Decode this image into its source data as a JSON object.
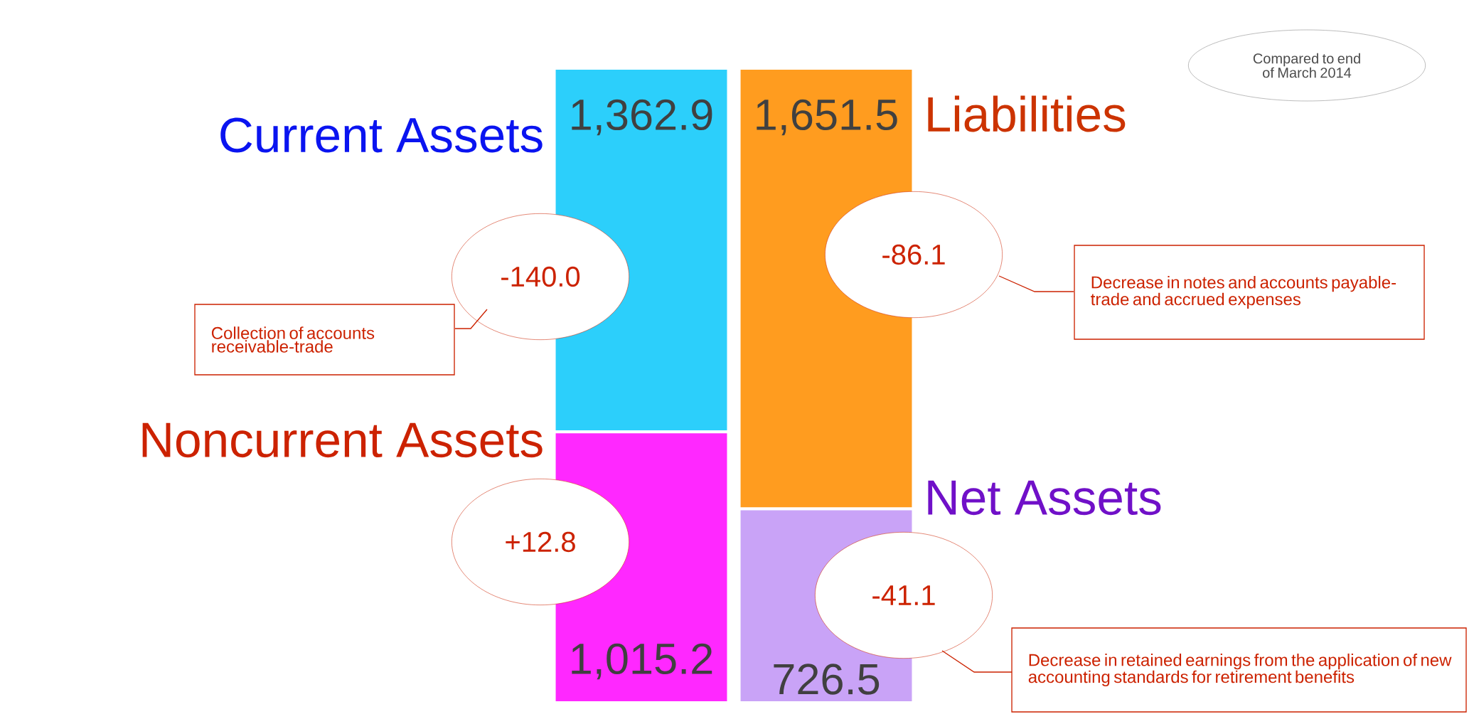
{
  "chart_data": {
    "type": "bar",
    "stacked": true,
    "categories": [
      null,
      null
    ],
    "tick_labels": false,
    "legend": false,
    "series": [
      {
        "name": "Noncurrent Assets",
        "color": "#ff28ff",
        "values": [
          1015.2,
          null
        ],
        "value_labels": [
          "1,015.2",
          null
        ]
      },
      {
        "name": "Current Assets",
        "color": "#2ccffb",
        "values": [
          1362.9,
          null
        ],
        "value_labels": [
          "1,362.9",
          null
        ]
      },
      {
        "name": "Net Assets",
        "color": "#c9a3f7",
        "values": [
          null,
          726.5
        ],
        "value_labels": [
          null,
          "726.5"
        ]
      },
      {
        "name": "Liabilities",
        "color": "#ff9c1f",
        "values": [
          null,
          1651.5
        ],
        "value_labels": [
          null,
          "1,651.5"
        ]
      }
    ],
    "annotations": [
      "Compared to end of March 2014",
      "-140.0",
      "-86.1",
      "+12.8",
      "-41.1",
      "Collection of accounts receivable-trade",
      "Decrease in notes and accounts payable-trade and accrued expenses",
      "Decrease in retained earnings from the application of new accounting standards for retirement benefits"
    ]
  }
}
